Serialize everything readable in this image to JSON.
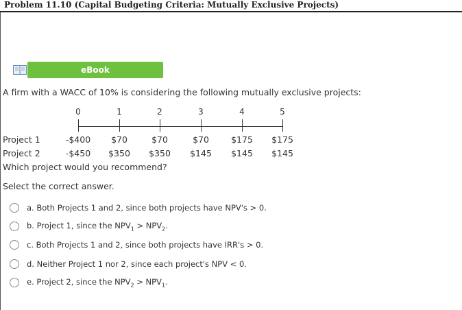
{
  "header": {
    "title": "Problem 11.10 (Capital Budgeting Criteria: Mutually Exclusive Projects)"
  },
  "ebook": {
    "label": "eBook",
    "icon": "book-icon"
  },
  "question": "A firm with a WACC of 10% is considering the following mutually exclusive projects:",
  "timeline": {
    "periods": [
      "0",
      "1",
      "2",
      "3",
      "4",
      "5"
    ]
  },
  "projects": [
    {
      "name": "Project 1",
      "cash_flows": [
        "-$400",
        "$70",
        "$70",
        "$70",
        "$175",
        "$175"
      ]
    },
    {
      "name": "Project 2",
      "cash_flows": [
        "-$450",
        "$350",
        "$350",
        "$145",
        "$145",
        "$145"
      ]
    }
  ],
  "prompt": "Which project would you recommend?",
  "instruction": "Select the correct answer.",
  "options": [
    {
      "prefix": "a. Both Projects 1 and 2, since both projects have NPV's > 0."
    },
    {
      "prefix": "b. Project 1, since the NPV",
      "sub1": "1",
      "mid": " > NPV",
      "sub2": "2",
      "suffix": "."
    },
    {
      "prefix": "c. Both Projects 1 and 2, since both projects have IRR's > 0."
    },
    {
      "prefix": "d. Neither Project 1 nor 2, since each project's NPV < 0."
    },
    {
      "prefix": "e. Project 2, since the NPV",
      "sub1": "2",
      "mid": " > NPV",
      "sub2": "1",
      "suffix": "."
    }
  ]
}
